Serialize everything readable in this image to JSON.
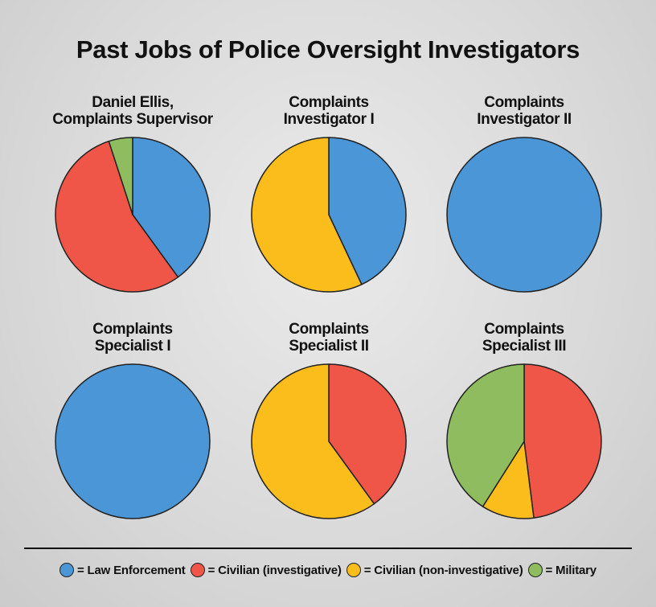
{
  "title": "Past Jobs of Police Oversight Investigators",
  "colors": {
    "law_enforcement": "#4a96d6",
    "civilian_investigative": "#ef5647",
    "civilian_non_investigative": "#fbbd1b",
    "military": "#8fbc5e"
  },
  "legend": [
    {
      "key": "law_enforcement",
      "label": "= Law Enforcement"
    },
    {
      "key": "civilian_investigative",
      "label": "= Civilian (investigative)"
    },
    {
      "key": "civilian_non_investigative",
      "label": "= Civilian (non-investigative)"
    },
    {
      "key": "military",
      "label": "= Military"
    }
  ],
  "chart_data": [
    {
      "type": "pie",
      "title_lines": [
        "Daniel Ellis,",
        "Complaints Supervisor"
      ],
      "slices": [
        {
          "category": "law_enforcement",
          "value": 40
        },
        {
          "category": "civilian_investigative",
          "value": 55
        },
        {
          "category": "military",
          "value": 5
        }
      ]
    },
    {
      "type": "pie",
      "title_lines": [
        "Complaints",
        "Investigator I"
      ],
      "slices": [
        {
          "category": "law_enforcement",
          "value": 43
        },
        {
          "category": "civilian_non_investigative",
          "value": 57
        }
      ]
    },
    {
      "type": "pie",
      "title_lines": [
        "Complaints",
        "Investigator II"
      ],
      "slices": [
        {
          "category": "law_enforcement",
          "value": 100
        }
      ]
    },
    {
      "type": "pie",
      "title_lines": [
        "Complaints",
        "Specialist I"
      ],
      "slices": [
        {
          "category": "law_enforcement",
          "value": 100
        }
      ]
    },
    {
      "type": "pie",
      "title_lines": [
        "Complaints",
        "Specialist II"
      ],
      "slices": [
        {
          "category": "civilian_investigative",
          "value": 40
        },
        {
          "category": "civilian_non_investigative",
          "value": 60
        }
      ]
    },
    {
      "type": "pie",
      "title_lines": [
        "Complaints",
        "Specialist III"
      ],
      "slices": [
        {
          "category": "civilian_investigative",
          "value": 48
        },
        {
          "category": "civilian_non_investigative",
          "value": 11
        },
        {
          "category": "military",
          "value": 41
        }
      ]
    }
  ]
}
